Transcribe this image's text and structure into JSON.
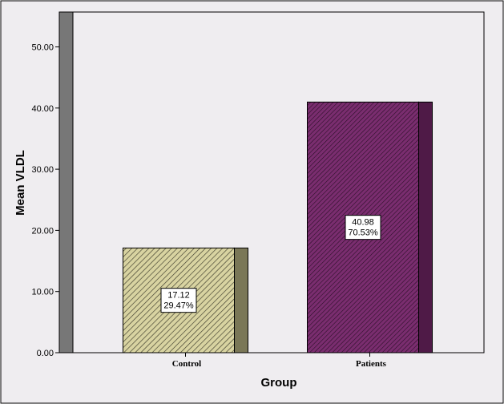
{
  "chart_data": {
    "type": "bar",
    "xlabel": "Group",
    "ylabel": "Mean VLDL",
    "categories": [
      "Control",
      "Patients"
    ],
    "values": [
      17.12,
      40.98
    ],
    "data_labels": [
      {
        "value": "17.12",
        "percent": "29.47%"
      },
      {
        "value": "40.98",
        "percent": "70.53%"
      }
    ],
    "yticks": [
      "0.00",
      "10.00",
      "20.00",
      "30.00",
      "40.00",
      "50.00"
    ],
    "ylim": [
      0,
      55.7
    ],
    "grid": false,
    "style": "3d-shaded",
    "colors": {
      "background": "#efedf0",
      "control_fill": "#d8d3a1",
      "control_hatch": "#3b3a2a",
      "control_side": "#7a7757",
      "patients_fill": "#7a2d6f",
      "patients_hatch": "#2a0f26",
      "patients_side": "#4f1a47",
      "wall": "#777777"
    }
  }
}
